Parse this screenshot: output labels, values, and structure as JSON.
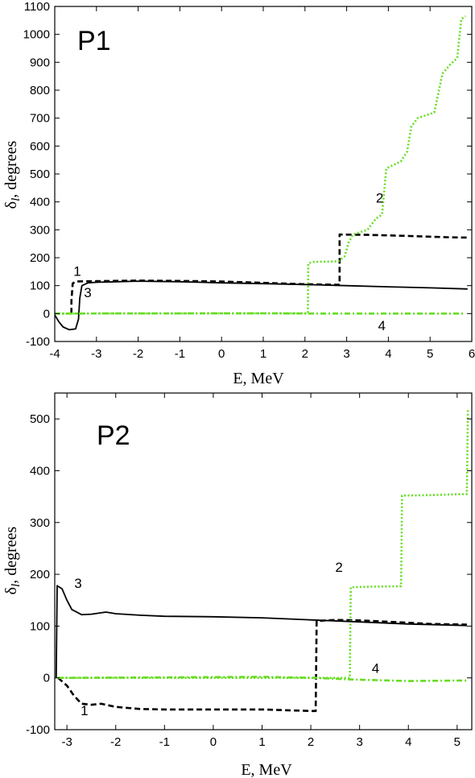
{
  "colors": {
    "black": "#000000",
    "green": "#66dd22"
  },
  "chart_data": [
    {
      "type": "line",
      "panel_label": "P1",
      "xlabel": "E, MeV",
      "ylabel_main": "δ",
      "ylabel_sub": "l",
      "ylabel_rest": ", degrees",
      "xlim": [
        -4,
        6
      ],
      "ylim": [
        -100,
        1100
      ],
      "x_ticks": [
        -4,
        -3,
        -2,
        -1,
        0,
        1,
        2,
        3,
        4,
        5,
        6
      ],
      "y_ticks": [
        -100,
        0,
        100,
        200,
        300,
        400,
        500,
        600,
        700,
        800,
        900,
        1000,
        1100
      ],
      "grid": false,
      "series": [
        {
          "name": "1",
          "style": "dashed",
          "color": "#000000",
          "label_at": [
            -3.55,
            135
          ],
          "points": [
            [
              -3.6,
              0
            ],
            [
              -3.6,
              45
            ],
            [
              -3.57,
              108
            ],
            [
              -3.5,
              115
            ],
            [
              -3.0,
              116
            ],
            [
              -2,
              118
            ],
            [
              -1,
              117
            ],
            [
              0,
              115
            ],
            [
              1,
              110
            ],
            [
              2,
              105
            ],
            [
              2.83,
              103
            ],
            [
              2.83,
              283
            ],
            [
              3.5,
              282
            ],
            [
              4.5,
              278
            ],
            [
              5.5,
              273
            ],
            [
              5.9,
              272
            ]
          ]
        },
        {
          "name": "2",
          "style": "dotted",
          "color": "#66dd22",
          "label_at": [
            3.7,
            398
          ],
          "points": [
            [
              -4.0,
              0
            ],
            [
              2.07,
              1
            ],
            [
              2.08,
              180
            ],
            [
              2.2,
              185
            ],
            [
              2.8,
              187
            ],
            [
              2.95,
              205
            ],
            [
              3.05,
              255
            ],
            [
              3.15,
              283
            ],
            [
              3.5,
              300
            ],
            [
              3.7,
              340
            ],
            [
              3.85,
              355
            ],
            [
              3.95,
              520
            ],
            [
              4.3,
              545
            ],
            [
              4.45,
              580
            ],
            [
              4.55,
              670
            ],
            [
              4.7,
              700
            ],
            [
              5.1,
              720
            ],
            [
              5.3,
              860
            ],
            [
              5.5,
              895
            ],
            [
              5.65,
              915
            ],
            [
              5.75,
              1055
            ],
            [
              5.85,
              1065
            ]
          ]
        },
        {
          "name": "3",
          "style": "solid",
          "color": "#000000",
          "label_at": [
            -3.3,
            58
          ],
          "points": [
            [
              -4.0,
              -5
            ],
            [
              -3.9,
              -30
            ],
            [
              -3.8,
              -48
            ],
            [
              -3.65,
              -58
            ],
            [
              -3.5,
              -55
            ],
            [
              -3.43,
              -20
            ],
            [
              -3.4,
              55
            ],
            [
              -3.35,
              100
            ],
            [
              -3.2,
              110
            ],
            [
              -3.0,
              112
            ],
            [
              -2,
              116
            ],
            [
              -1,
              114
            ],
            [
              0,
              110
            ],
            [
              1,
              107
            ],
            [
              2,
              104
            ],
            [
              3,
              100
            ],
            [
              4,
              96
            ],
            [
              5,
              92
            ],
            [
              5.9,
              88
            ]
          ]
        },
        {
          "name": "4",
          "style": "dashdot",
          "color": "#66dd22",
          "label_at": [
            3.75,
            -60
          ],
          "points": [
            [
              -4.0,
              0
            ],
            [
              1.0,
              1
            ],
            [
              2.07,
              0
            ],
            [
              3,
              0
            ],
            [
              4,
              0
            ],
            [
              5,
              0
            ],
            [
              5.85,
              0
            ]
          ]
        }
      ]
    },
    {
      "type": "line",
      "panel_label": "P2",
      "xlabel": "E, MeV",
      "ylabel_main": "δ",
      "ylabel_sub": "l",
      "ylabel_rest": ", degrees",
      "xlim": [
        -3.25,
        5.3
      ],
      "ylim": [
        -100,
        550
      ],
      "x_ticks": [
        -3,
        -2,
        -1,
        0,
        1,
        2,
        3,
        4,
        5
      ],
      "y_ticks": [
        -100,
        0,
        100,
        200,
        300,
        400,
        500
      ],
      "grid": false,
      "series": [
        {
          "name": "1",
          "style": "dashed",
          "color": "#000000",
          "label_at": [
            -2.72,
            -72
          ],
          "points": [
            [
              -3.18,
              0
            ],
            [
              -3.0,
              -15
            ],
            [
              -2.85,
              -35
            ],
            [
              -2.7,
              -50
            ],
            [
              -2.5,
              -52
            ],
            [
              -2.3,
              -50
            ],
            [
              -2.0,
              -56
            ],
            [
              -1.5,
              -60
            ],
            [
              -1.0,
              -61
            ],
            [
              0,
              -61
            ],
            [
              1,
              -61
            ],
            [
              2.0,
              -64
            ],
            [
              2.1,
              -64
            ],
            [
              2.12,
              110
            ],
            [
              2.5,
              112
            ],
            [
              3.0,
              111
            ],
            [
              3.9,
              107
            ],
            [
              4.5,
              104
            ],
            [
              5.2,
              103
            ]
          ]
        },
        {
          "name": "2",
          "style": "dotted",
          "color": "#66dd22",
          "label_at": [
            2.5,
            205
          ],
          "points": [
            [
              -3.18,
              0
            ],
            [
              2.8,
              0
            ],
            [
              2.82,
              175
            ],
            [
              3.2,
              176
            ],
            [
              3.85,
              177
            ],
            [
              3.87,
              352
            ],
            [
              4.5,
              353
            ],
            [
              5.2,
              355
            ],
            [
              5.22,
              520
            ]
          ]
        },
        {
          "name": "3",
          "style": "solid",
          "color": "#000000",
          "label_at": [
            -2.85,
            174
          ],
          "points": [
            [
              -3.22,
              0
            ],
            [
              -3.2,
              178
            ],
            [
              -3.1,
              172
            ],
            [
              -3.0,
              150
            ],
            [
              -2.9,
              132
            ],
            [
              -2.7,
              122
            ],
            [
              -2.5,
              123
            ],
            [
              -2.2,
              127
            ],
            [
              -2.0,
              124
            ],
            [
              -1.5,
              121
            ],
            [
              -1,
              119
            ],
            [
              0,
              118
            ],
            [
              1,
              116
            ],
            [
              2,
              112
            ],
            [
              3,
              108
            ],
            [
              4,
              104
            ],
            [
              5.2,
              101
            ]
          ]
        },
        {
          "name": "4",
          "style": "dashdot",
          "color": "#66dd22",
          "label_at": [
            3.25,
            10
          ],
          "points": [
            [
              -3.18,
              0
            ],
            [
              1.0,
              2
            ],
            [
              2.1,
              0
            ],
            [
              2.8,
              -3
            ],
            [
              4.0,
              -6
            ],
            [
              5.2,
              -5
            ]
          ]
        }
      ]
    }
  ]
}
